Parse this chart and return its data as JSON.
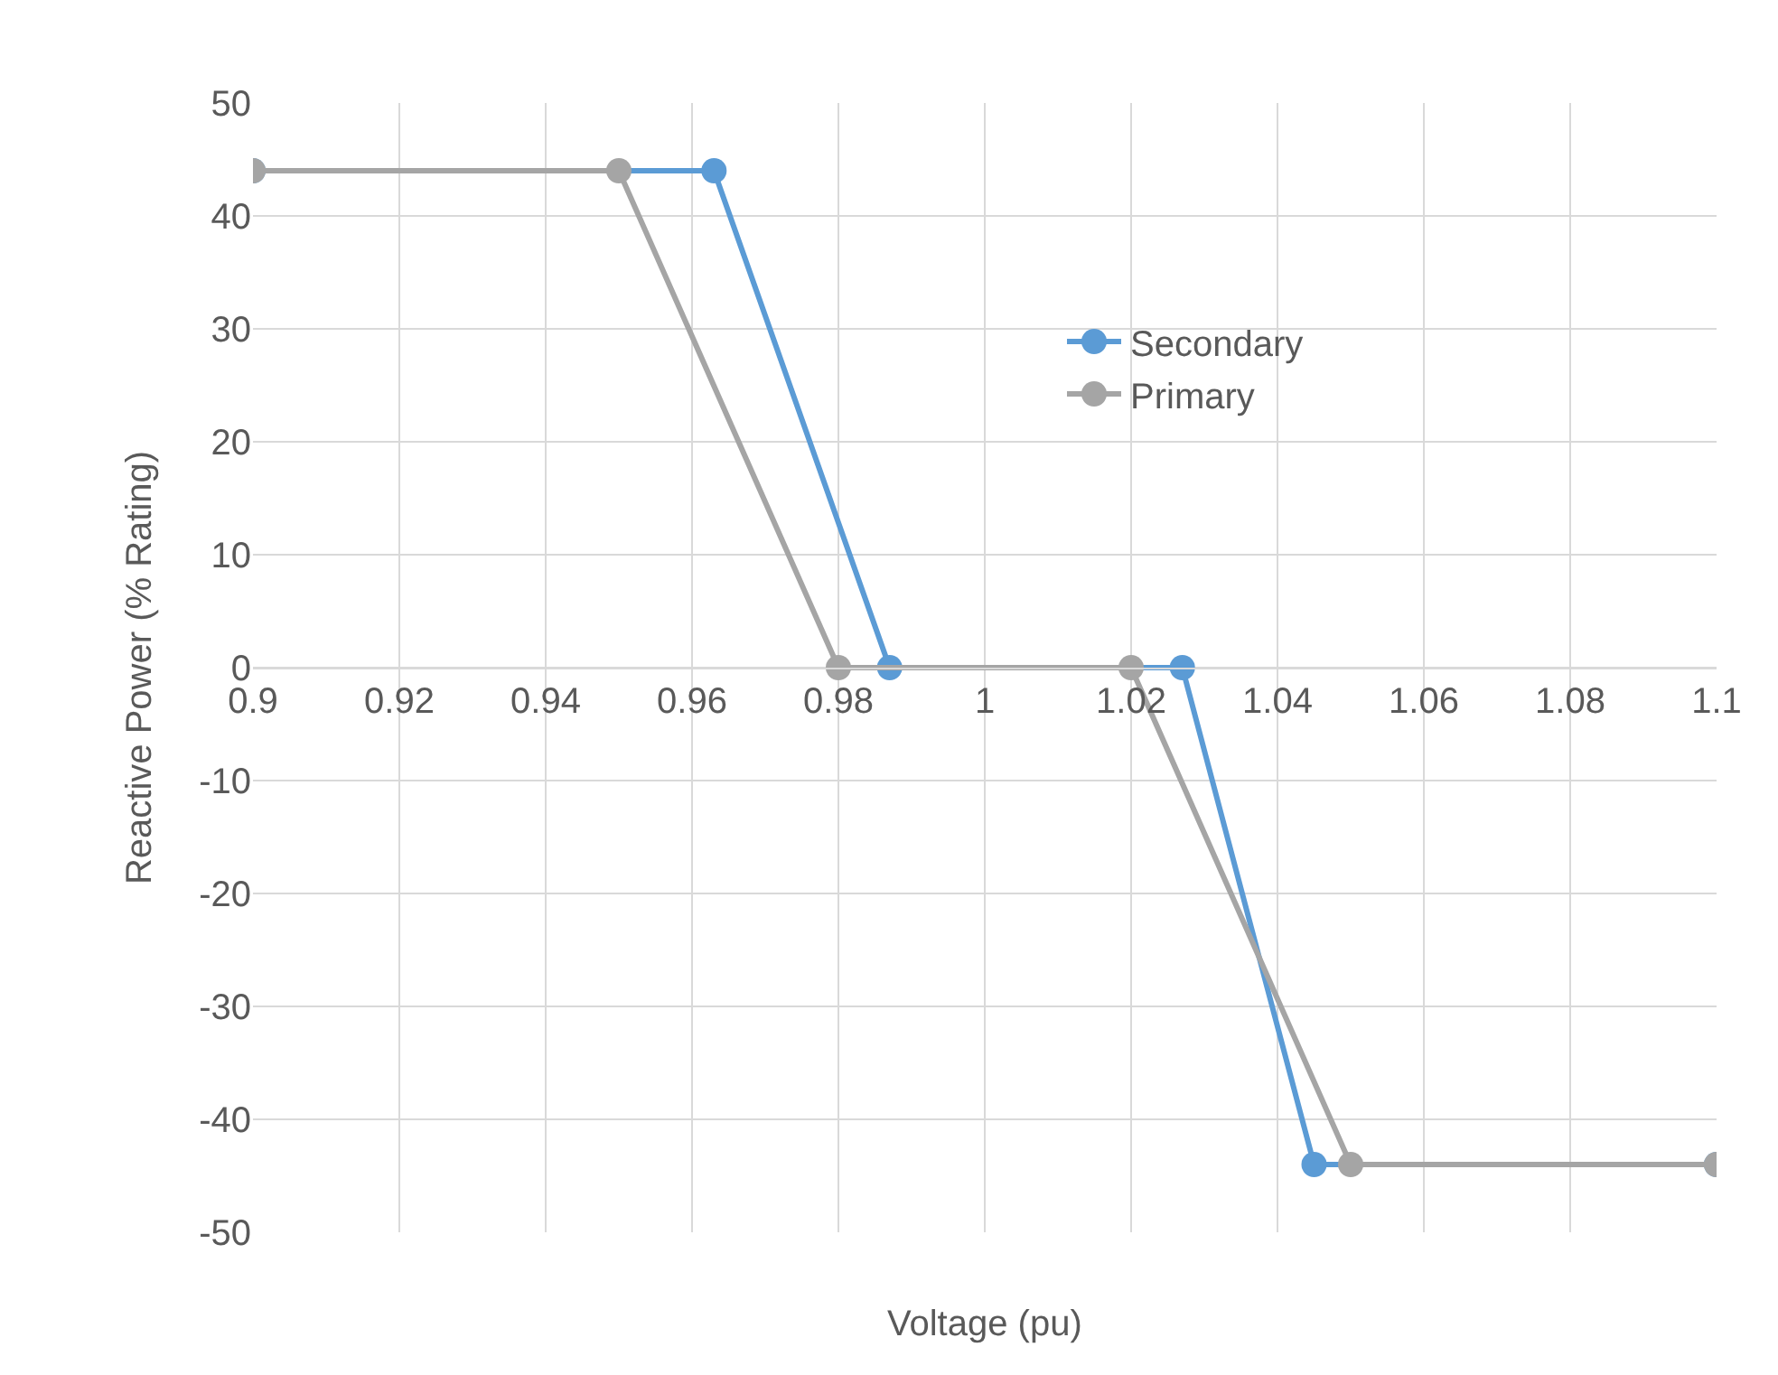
{
  "chart_data": {
    "type": "line",
    "xlabel": "Voltage (pu)",
    "ylabel": "Reactive Power (% Rating)",
    "series": [
      {
        "name": "Secondary",
        "color": "#5b9bd5",
        "x": [
          0.9,
          0.963,
          0.987,
          1.027,
          1.045,
          1.1
        ],
        "values": [
          44,
          44,
          0,
          0,
          -44,
          -44
        ]
      },
      {
        "name": "Primary",
        "color": "#a5a5a5",
        "x": [
          0.9,
          0.95,
          0.98,
          1.02,
          1.05,
          1.1
        ],
        "values": [
          44,
          44,
          0,
          0,
          -44,
          -44
        ]
      }
    ],
    "xlim": [
      0.9,
      1.1
    ],
    "xticks": [
      0.9,
      0.92,
      0.94,
      0.96,
      0.98,
      1,
      1.02,
      1.04,
      1.06,
      1.08,
      1.1
    ],
    "ylim": [
      -50,
      50
    ],
    "yticks": [
      -50,
      -40,
      -30,
      -20,
      -10,
      0,
      10,
      20,
      30,
      40,
      50
    ],
    "grid": true,
    "legend": "right",
    "marker": "circle",
    "line_style": "solid"
  }
}
